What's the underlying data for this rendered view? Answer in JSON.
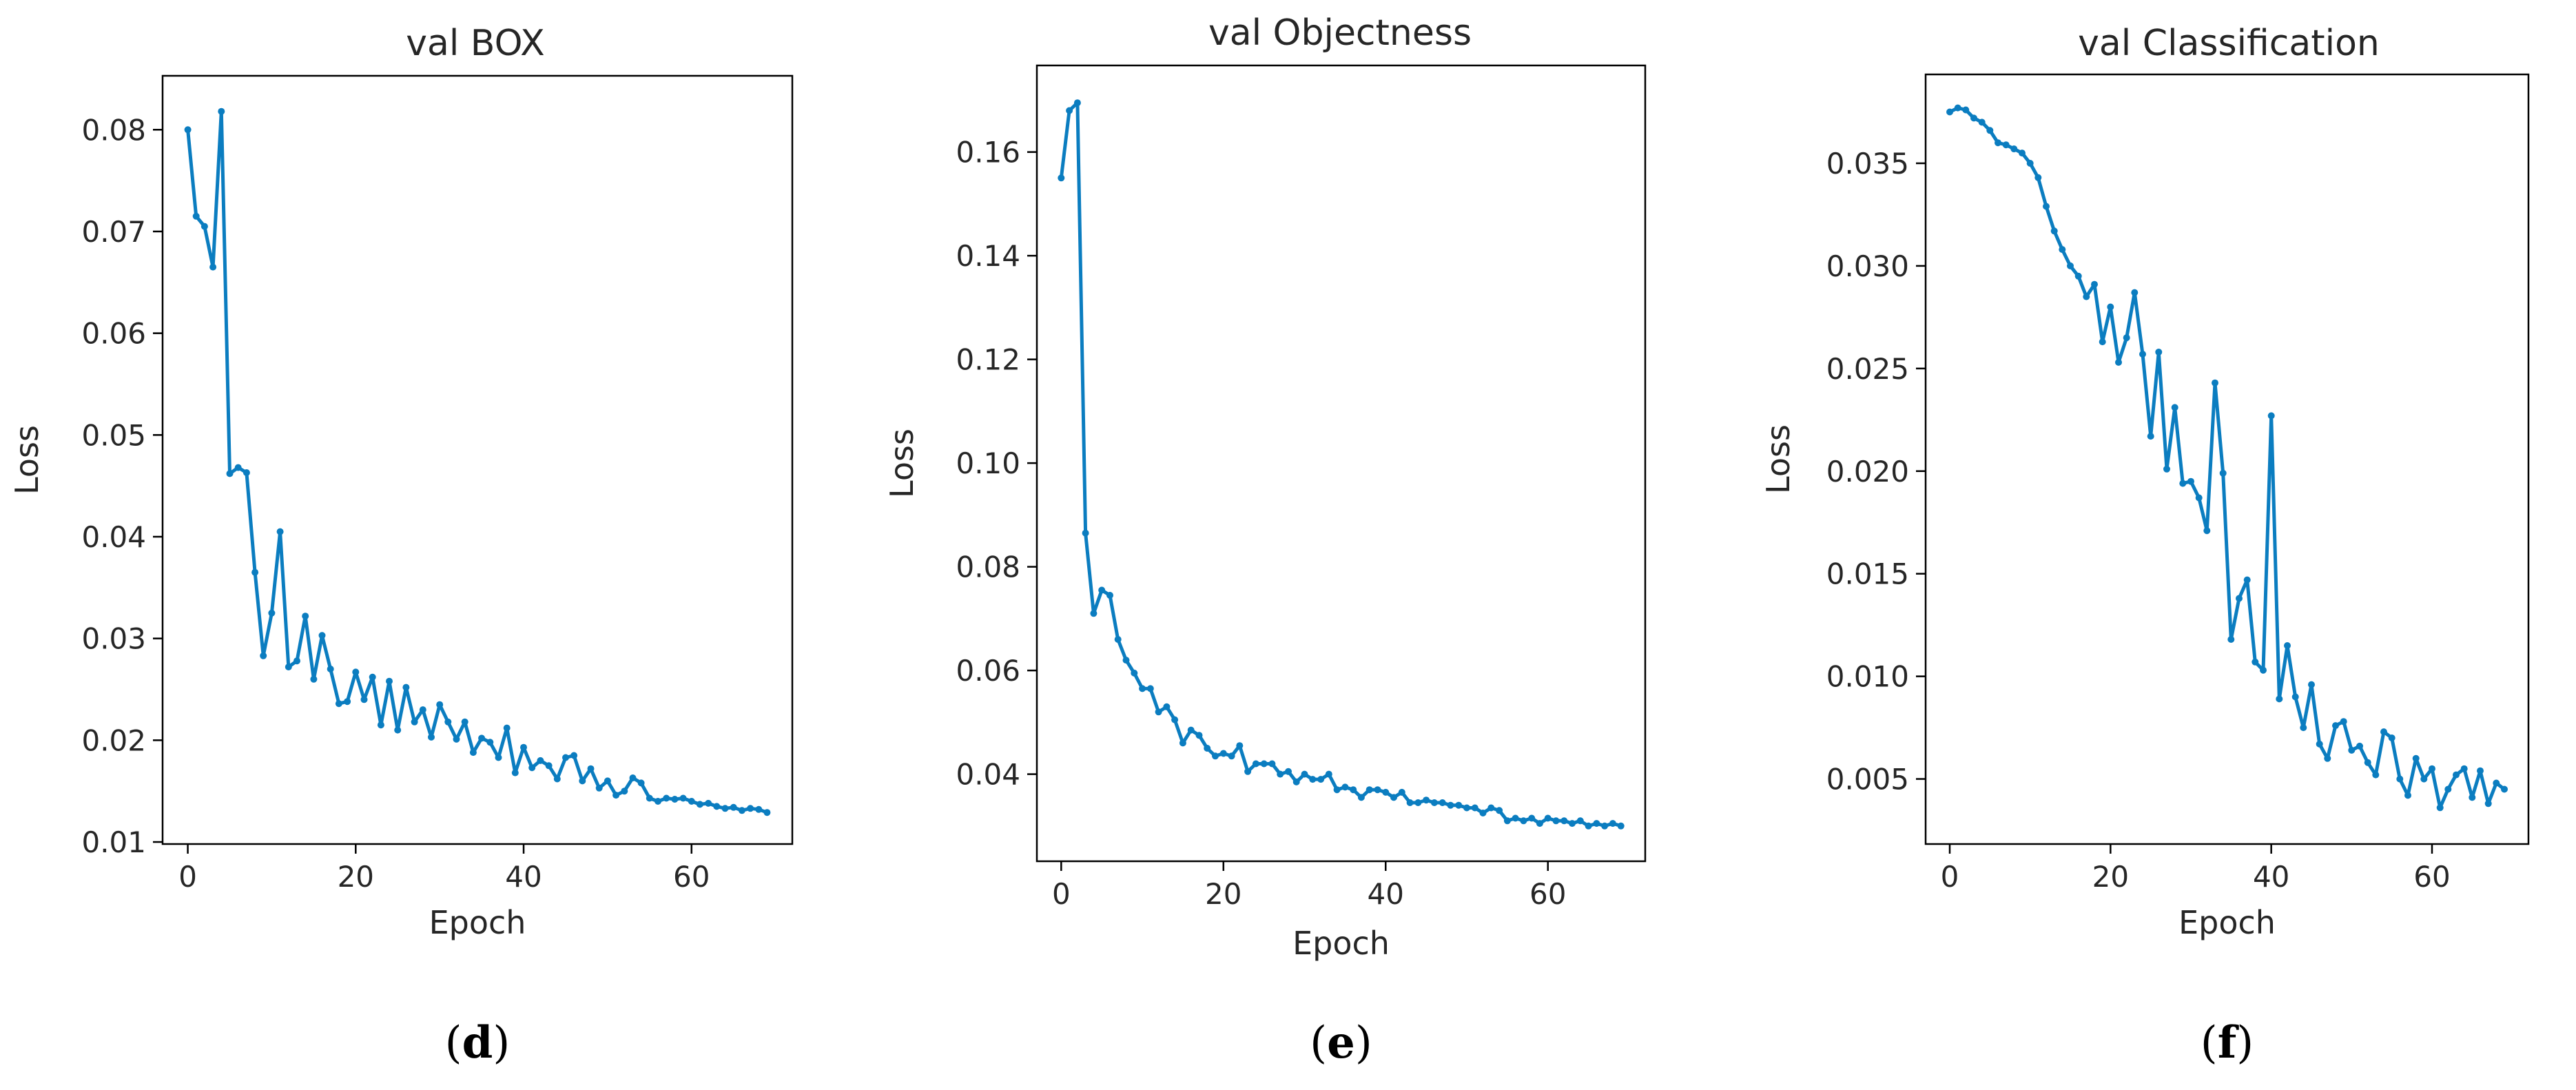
{
  "figure": {
    "colors": {
      "series": "#0b7dc0",
      "axis": "#000000",
      "text": "#262626"
    }
  },
  "chart_data": [
    {
      "type": "line",
      "panel": "d",
      "caption_open": "(",
      "caption_letter": "d",
      "caption_close": ")",
      "title": "val BOX",
      "xlabel": "Epoch",
      "ylabel": "Loss",
      "xlim": [
        -3,
        72
      ],
      "ylim": [
        0.0098,
        0.0853
      ],
      "xticks": [
        0,
        20,
        40,
        60
      ],
      "xtick_labels": [
        "0",
        "20",
        "40",
        "60"
      ],
      "yticks": [
        0.01,
        0.02,
        0.03,
        0.04,
        0.05,
        0.06,
        0.07,
        0.08
      ],
      "ytick_labels": [
        "0.01",
        "0.02",
        "0.03",
        "0.04",
        "0.05",
        "0.06",
        "0.07",
        "0.08"
      ],
      "series": [
        {
          "name": "val BOX",
          "x": [
            0,
            1,
            2,
            3,
            4,
            5,
            6,
            7,
            8,
            9,
            10,
            11,
            12,
            13,
            14,
            15,
            16,
            17,
            18,
            19,
            20,
            21,
            22,
            23,
            24,
            25,
            26,
            27,
            28,
            29,
            30,
            31,
            32,
            33,
            34,
            35,
            36,
            37,
            38,
            39,
            40,
            41,
            42,
            43,
            44,
            45,
            46,
            47,
            48,
            49,
            50,
            51,
            52,
            53,
            54,
            55,
            56,
            57,
            58,
            59,
            60,
            61,
            62,
            63,
            64,
            65,
            66,
            67,
            68,
            69
          ],
          "values": [
            0.08,
            0.0715,
            0.0705,
            0.0665,
            0.0818,
            0.0462,
            0.0468,
            0.0463,
            0.0365,
            0.0283,
            0.0325,
            0.0405,
            0.0272,
            0.0278,
            0.0322,
            0.026,
            0.0303,
            0.027,
            0.0236,
            0.0238,
            0.0267,
            0.024,
            0.0262,
            0.0215,
            0.0258,
            0.021,
            0.0252,
            0.0218,
            0.023,
            0.0203,
            0.0235,
            0.0218,
            0.0201,
            0.0218,
            0.0188,
            0.0202,
            0.0198,
            0.0183,
            0.0212,
            0.0168,
            0.0193,
            0.0173,
            0.018,
            0.0175,
            0.0162,
            0.0183,
            0.0185,
            0.016,
            0.0172,
            0.0153,
            0.016,
            0.0146,
            0.015,
            0.0163,
            0.0158,
            0.0143,
            0.014,
            0.0143,
            0.0142,
            0.0143,
            0.014,
            0.0137,
            0.0138,
            0.0135,
            0.0133,
            0.0134,
            0.0131,
            0.0133,
            0.0132,
            0.0129
          ]
        }
      ]
    },
    {
      "type": "line",
      "panel": "e",
      "caption_open": "(",
      "caption_letter": "e",
      "caption_close": ")",
      "title": "val Objectness",
      "xlabel": "Epoch",
      "ylabel": "Loss",
      "xlim": [
        -3,
        72
      ],
      "ylim": [
        0.0232,
        0.1767
      ],
      "xticks": [
        0,
        20,
        40,
        60
      ],
      "xtick_labels": [
        "0",
        "20",
        "40",
        "60"
      ],
      "yticks": [
        0.04,
        0.06,
        0.08,
        0.1,
        0.12,
        0.14,
        0.16
      ],
      "ytick_labels": [
        "0.04",
        "0.06",
        "0.08",
        "0.10",
        "0.12",
        "0.14",
        "0.16"
      ],
      "series": [
        {
          "name": "val Objectness",
          "x": [
            0,
            1,
            2,
            3,
            4,
            5,
            6,
            7,
            8,
            9,
            10,
            11,
            12,
            13,
            14,
            15,
            16,
            17,
            18,
            19,
            20,
            21,
            22,
            23,
            24,
            25,
            26,
            27,
            28,
            29,
            30,
            31,
            32,
            33,
            34,
            35,
            36,
            37,
            38,
            39,
            40,
            41,
            42,
            43,
            44,
            45,
            46,
            47,
            48,
            49,
            50,
            51,
            52,
            53,
            54,
            55,
            56,
            57,
            58,
            59,
            60,
            61,
            62,
            63,
            64,
            65,
            66,
            67,
            68,
            69
          ],
          "values": [
            0.155,
            0.168,
            0.1695,
            0.0865,
            0.071,
            0.0755,
            0.0745,
            0.066,
            0.062,
            0.0595,
            0.0565,
            0.0565,
            0.052,
            0.053,
            0.0505,
            0.046,
            0.0485,
            0.0475,
            0.045,
            0.0435,
            0.044,
            0.0435,
            0.0455,
            0.0405,
            0.042,
            0.042,
            0.042,
            0.04,
            0.0405,
            0.0385,
            0.04,
            0.039,
            0.039,
            0.04,
            0.037,
            0.0375,
            0.037,
            0.0355,
            0.037,
            0.037,
            0.0365,
            0.0355,
            0.0365,
            0.0345,
            0.0345,
            0.035,
            0.0345,
            0.0345,
            0.034,
            0.034,
            0.0335,
            0.0335,
            0.0325,
            0.0335,
            0.033,
            0.031,
            0.0315,
            0.031,
            0.0315,
            0.0305,
            0.0315,
            0.031,
            0.031,
            0.0305,
            0.031,
            0.03,
            0.0305,
            0.03,
            0.0305,
            0.03
          ]
        }
      ]
    },
    {
      "type": "line",
      "panel": "f",
      "caption_open": "(",
      "caption_letter": "f",
      "caption_close": ")",
      "title": "val Classification",
      "xlabel": "Epoch",
      "ylabel": "Loss",
      "xlim": [
        -3,
        72
      ],
      "ylim": [
        0.00183,
        0.03933
      ],
      "xticks": [
        0,
        20,
        40,
        60
      ],
      "xtick_labels": [
        "0",
        "20",
        "40",
        "60"
      ],
      "yticks": [
        0.005,
        0.01,
        0.015,
        0.02,
        0.025,
        0.03,
        0.035
      ],
      "ytick_labels": [
        "0.005",
        "0.010",
        "0.015",
        "0.020",
        "0.025",
        "0.030",
        "0.035"
      ],
      "series": [
        {
          "name": "val Classification",
          "x": [
            0,
            1,
            2,
            3,
            4,
            5,
            6,
            7,
            8,
            9,
            10,
            11,
            12,
            13,
            14,
            15,
            16,
            17,
            18,
            19,
            20,
            21,
            22,
            23,
            24,
            25,
            26,
            27,
            28,
            29,
            30,
            31,
            32,
            33,
            34,
            35,
            36,
            37,
            38,
            39,
            40,
            41,
            42,
            43,
            44,
            45,
            46,
            47,
            48,
            49,
            50,
            51,
            52,
            53,
            54,
            55,
            56,
            57,
            58,
            59,
            60,
            61,
            62,
            63,
            64,
            65,
            66,
            67,
            68,
            69
          ],
          "values": [
            0.0375,
            0.0377,
            0.0376,
            0.0372,
            0.037,
            0.0366,
            0.036,
            0.0359,
            0.0357,
            0.0355,
            0.035,
            0.0343,
            0.0329,
            0.0317,
            0.0308,
            0.03,
            0.0295,
            0.0285,
            0.0291,
            0.0263,
            0.028,
            0.0253,
            0.0265,
            0.0287,
            0.0257,
            0.0217,
            0.0258,
            0.0201,
            0.0231,
            0.0194,
            0.0195,
            0.0187,
            0.0171,
            0.0243,
            0.0199,
            0.0118,
            0.0138,
            0.0147,
            0.0107,
            0.0103,
            0.0227,
            0.0089,
            0.0115,
            0.009,
            0.0075,
            0.0096,
            0.0067,
            0.006,
            0.0076,
            0.0078,
            0.0064,
            0.0066,
            0.0058,
            0.0052,
            0.0073,
            0.007,
            0.005,
            0.0042,
            0.006,
            0.005,
            0.0055,
            0.0036,
            0.0045,
            0.0052,
            0.0055,
            0.0041,
            0.0054,
            0.0038,
            0.0048,
            0.0045
          ]
        }
      ]
    }
  ]
}
